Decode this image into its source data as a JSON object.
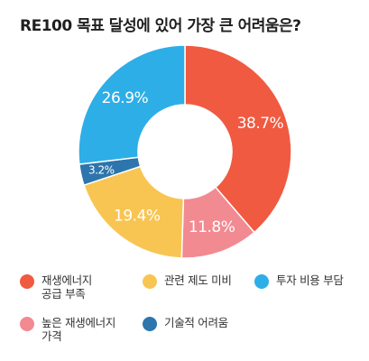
{
  "title": "RE100 목표 달성에 있어 가장 큰 어려움은?",
  "chart_data": {
    "type": "pie",
    "donut": true,
    "title": "RE100 목표 달성에 있어 가장 큰 어려움은?",
    "legend_position": "bottom",
    "slices": [
      {
        "label": "재생에너지\n공급 부족",
        "value": 38.7,
        "display": "38.7%",
        "color": "#f05a41"
      },
      {
        "label": "높은 재생에너지\n가격",
        "value": 11.8,
        "display": "11.8%",
        "color": "#f28a92"
      },
      {
        "label": "관련 제도 미비",
        "value": 19.4,
        "display": "19.4%",
        "color": "#f8c552"
      },
      {
        "label": "기술적 어려움",
        "value": 3.2,
        "display": "3.2%",
        "color": "#2d75ad"
      },
      {
        "label": "투자 비용 부담",
        "value": 26.9,
        "display": "26.9%",
        "color": "#2eaee6"
      }
    ]
  },
  "legend_order": [
    0,
    2,
    4,
    1,
    3
  ]
}
